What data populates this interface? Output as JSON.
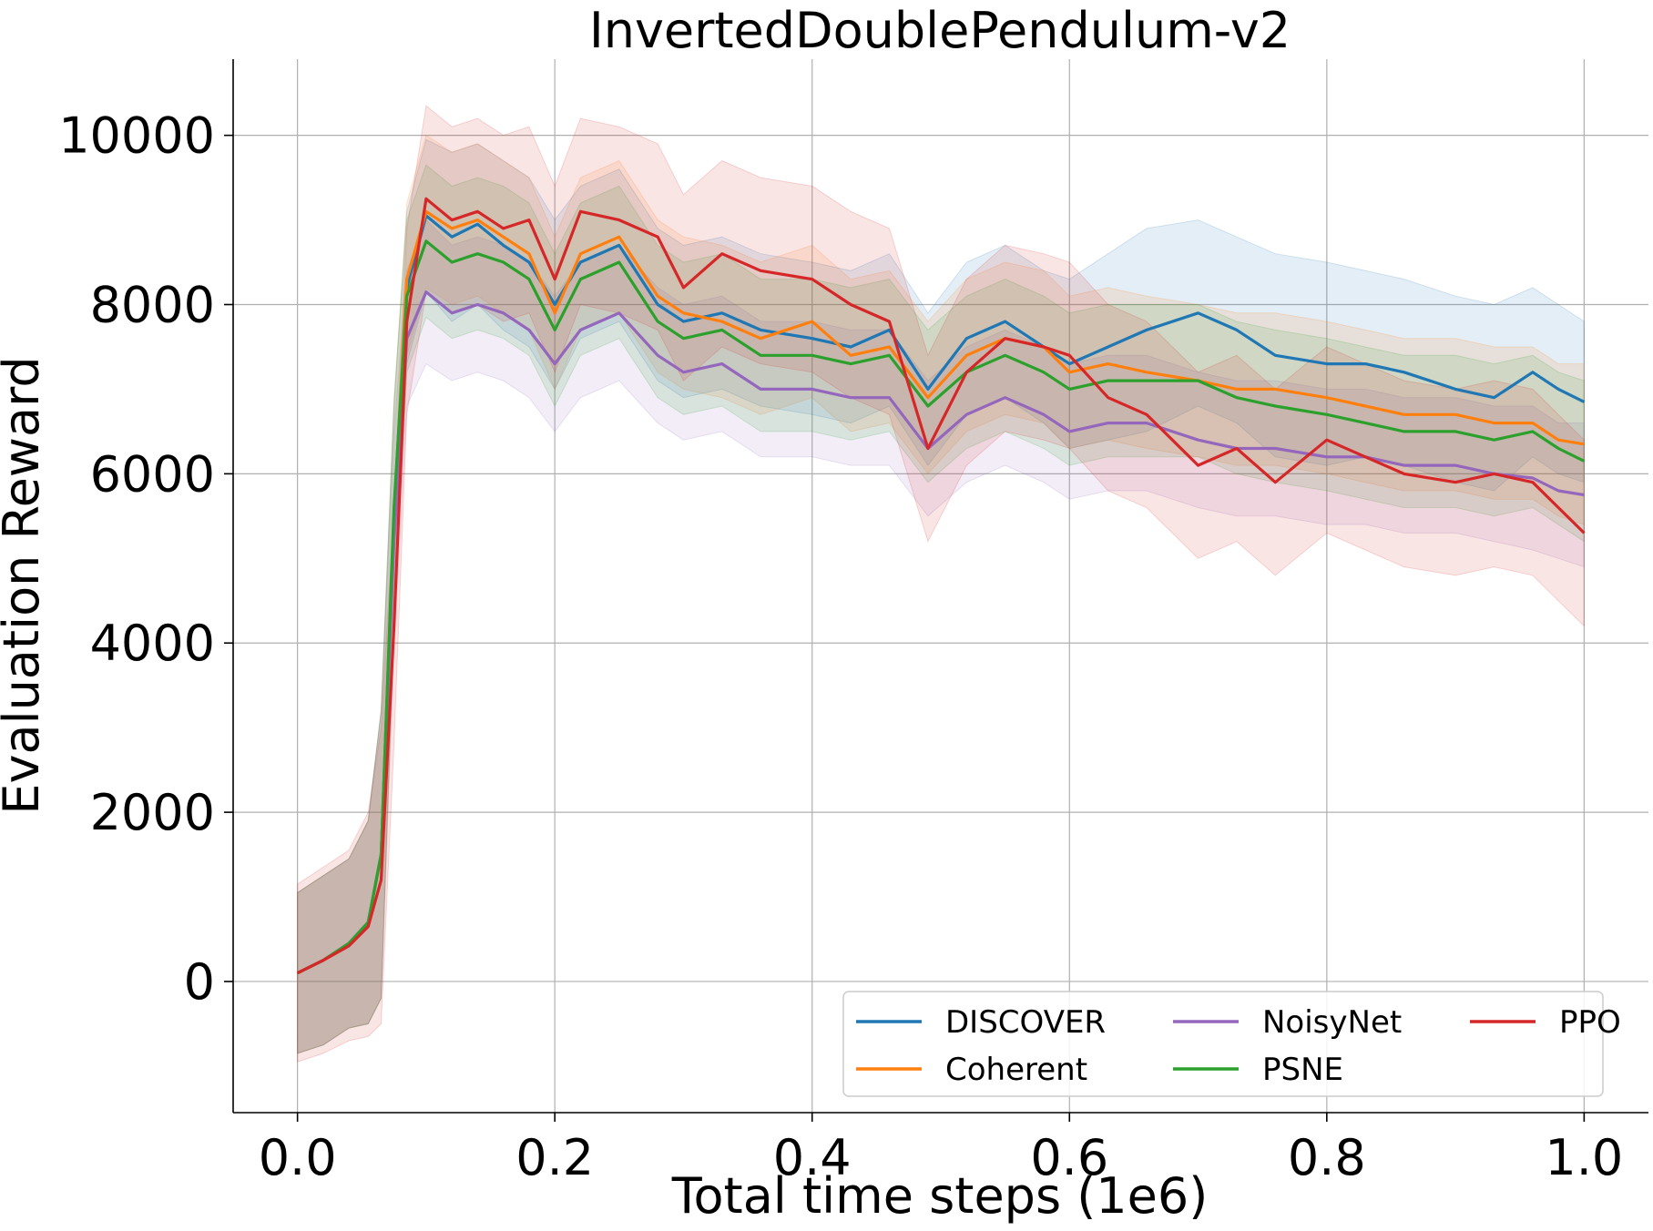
{
  "chart_data": {
    "type": "line",
    "title": "InvertedDoublePendulum-v2",
    "xlabel": "Total time steps (1e6)",
    "ylabel": "Evaluation Reward",
    "xlim": [
      -0.05,
      1.05
    ],
    "ylim": [
      -1550,
      10900
    ],
    "xticks": [
      0.0,
      0.2,
      0.4,
      0.6,
      0.8,
      1.0
    ],
    "xtick_labels": [
      "0.0",
      "0.2",
      "0.4",
      "0.6",
      "0.8",
      "1.0"
    ],
    "yticks": [
      0,
      2000,
      4000,
      6000,
      8000,
      10000
    ],
    "ytick_labels": [
      "0",
      "2000",
      "4000",
      "6000",
      "8000",
      "10000"
    ],
    "grid": true,
    "legend_position": "lower-right",
    "x": [
      0.0,
      0.02,
      0.04,
      0.055,
      0.065,
      0.075,
      0.085,
      0.1,
      0.12,
      0.14,
      0.16,
      0.18,
      0.2,
      0.22,
      0.25,
      0.28,
      0.3,
      0.33,
      0.36,
      0.4,
      0.43,
      0.46,
      0.49,
      0.52,
      0.55,
      0.58,
      0.6,
      0.63,
      0.66,
      0.7,
      0.73,
      0.76,
      0.8,
      0.83,
      0.86,
      0.9,
      0.93,
      0.96,
      0.98,
      1.0
    ],
    "series": [
      {
        "name": "DISCOVER",
        "color": "#1f77b4",
        "values": [
          100,
          250,
          450,
          700,
          1500,
          5500,
          8200,
          9050,
          8800,
          8950,
          8700,
          8500,
          8000,
          8500,
          8700,
          8000,
          7800,
          7900,
          7700,
          7600,
          7500,
          7700,
          7000,
          7600,
          7800,
          7500,
          7300,
          7500,
          7700,
          7900,
          7700,
          7400,
          7300,
          7300,
          7200,
          7000,
          6900,
          7200,
          7000,
          6850
        ],
        "upper": [
          1050,
          1250,
          1450,
          1900,
          3200,
          6800,
          9100,
          9950,
          9800,
          9900,
          9700,
          9500,
          9000,
          9400,
          9600,
          8900,
          8700,
          8800,
          8600,
          8500,
          8400,
          8600,
          7900,
          8500,
          8700,
          8400,
          8300,
          8600,
          8900,
          9000,
          8800,
          8600,
          8500,
          8400,
          8300,
          8100,
          8000,
          8200,
          8000,
          7800
        ],
        "lower": [
          -850,
          -750,
          -550,
          -500,
          -200,
          4200,
          7300,
          8150,
          7800,
          8000,
          7700,
          7500,
          7000,
          7600,
          7800,
          7100,
          6900,
          7000,
          6800,
          6700,
          6600,
          6800,
          6100,
          6700,
          6900,
          6600,
          6300,
          6400,
          6500,
          6800,
          6600,
          6200,
          6100,
          6200,
          6100,
          5900,
          5800,
          6200,
          6000,
          5900
        ]
      },
      {
        "name": "Coherent",
        "color": "#ff7f0e",
        "values": [
          100,
          250,
          450,
          700,
          1500,
          5500,
          8300,
          9100,
          8900,
          9000,
          8800,
          8600,
          7900,
          8600,
          8800,
          8100,
          7900,
          7800,
          7600,
          7800,
          7400,
          7500,
          6900,
          7400,
          7600,
          7500,
          7200,
          7300,
          7200,
          7100,
          7000,
          7000,
          6900,
          6800,
          6700,
          6700,
          6600,
          6600,
          6400,
          6350
        ],
        "upper": [
          1050,
          1250,
          1450,
          1900,
          3200,
          6800,
          9200,
          10000,
          9800,
          9900,
          9700,
          9500,
          8800,
          9500,
          9700,
          9000,
          8800,
          8700,
          8500,
          8700,
          8300,
          8400,
          7800,
          8300,
          8500,
          8400,
          8100,
          8200,
          8100,
          8000,
          7900,
          7900,
          7800,
          7700,
          7600,
          7600,
          7500,
          7500,
          7300,
          7300
        ],
        "lower": [
          -850,
          -750,
          -550,
          -500,
          -200,
          4200,
          7400,
          8200,
          8000,
          8100,
          7900,
          7700,
          7000,
          7700,
          7900,
          7200,
          7000,
          6900,
          6700,
          6900,
          6500,
          6600,
          6000,
          6500,
          6700,
          6600,
          6300,
          6400,
          6300,
          6200,
          6100,
          6100,
          6000,
          5900,
          5800,
          5800,
          5700,
          5700,
          5500,
          5400
        ]
      },
      {
        "name": "NoisyNet",
        "color": "#9467bd",
        "values": [
          100,
          250,
          450,
          700,
          1500,
          5200,
          7600,
          8150,
          7900,
          8000,
          7900,
          7700,
          7300,
          7700,
          7900,
          7400,
          7200,
          7300,
          7000,
          7000,
          6900,
          6900,
          6300,
          6700,
          6900,
          6700,
          6500,
          6600,
          6600,
          6400,
          6300,
          6300,
          6200,
          6200,
          6100,
          6100,
          6000,
          5950,
          5800,
          5750
        ],
        "upper": [
          1050,
          1250,
          1450,
          1900,
          3200,
          6500,
          8400,
          9000,
          8700,
          8800,
          8700,
          8500,
          8100,
          8500,
          8700,
          8200,
          8000,
          8100,
          7800,
          7800,
          7700,
          7700,
          7100,
          7500,
          7700,
          7500,
          7300,
          7400,
          7400,
          7200,
          7100,
          7100,
          7000,
          7000,
          6900,
          6900,
          6800,
          6800,
          6600,
          6600
        ],
        "lower": [
          -850,
          -750,
          -550,
          -500,
          -200,
          3900,
          6800,
          7300,
          7100,
          7200,
          7100,
          6900,
          6500,
          6900,
          7100,
          6600,
          6400,
          6500,
          6200,
          6200,
          6100,
          6100,
          5500,
          5900,
          6100,
          5900,
          5700,
          5800,
          5800,
          5600,
          5500,
          5500,
          5400,
          5400,
          5300,
          5300,
          5200,
          5100,
          5000,
          4900
        ]
      },
      {
        "name": "PSNE",
        "color": "#2ca02c",
        "values": [
          100,
          250,
          450,
          700,
          1500,
          5600,
          8100,
          8750,
          8500,
          8600,
          8500,
          8300,
          7700,
          8300,
          8500,
          7800,
          7600,
          7700,
          7400,
          7400,
          7300,
          7400,
          6800,
          7200,
          7400,
          7200,
          7000,
          7100,
          7100,
          7100,
          6900,
          6800,
          6700,
          6600,
          6500,
          6500,
          6400,
          6500,
          6300,
          6150
        ],
        "upper": [
          1050,
          1250,
          1450,
          1900,
          3200,
          6900,
          9000,
          9650,
          9400,
          9500,
          9400,
          9200,
          8600,
          9200,
          9400,
          8700,
          8500,
          8600,
          8300,
          8300,
          8200,
          8300,
          7700,
          8100,
          8300,
          8100,
          7900,
          8000,
          8000,
          8000,
          7800,
          7700,
          7600,
          7500,
          7400,
          7400,
          7300,
          7400,
          7200,
          7100
        ],
        "lower": [
          -850,
          -750,
          -550,
          -500,
          -200,
          4300,
          7200,
          7850,
          7600,
          7700,
          7600,
          7400,
          6800,
          7400,
          7600,
          6900,
          6700,
          6800,
          6500,
          6500,
          6400,
          6500,
          5900,
          6300,
          6500,
          6300,
          6100,
          6200,
          6200,
          6200,
          6000,
          5900,
          5800,
          5700,
          5600,
          5600,
          5500,
          5600,
          5400,
          5200
        ]
      },
      {
        "name": "PPO",
        "color": "#d62728",
        "values": [
          100,
          250,
          420,
          650,
          1200,
          4200,
          7800,
          9250,
          9000,
          9100,
          8900,
          9000,
          8300,
          9100,
          9000,
          8800,
          8200,
          8600,
          8400,
          8300,
          8000,
          7800,
          6300,
          7200,
          7600,
          7500,
          7400,
          6900,
          6700,
          6100,
          6300,
          5900,
          6400,
          6200,
          6000,
          5900,
          6000,
          5900,
          5600,
          5300
        ],
        "upper": [
          1150,
          1350,
          1550,
          2000,
          3000,
          5600,
          8900,
          10350,
          10100,
          10200,
          10000,
          10100,
          9400,
          10200,
          10100,
          9900,
          9300,
          9700,
          9500,
          9400,
          9100,
          8900,
          7400,
          8300,
          8700,
          8600,
          8500,
          8000,
          7800,
          7200,
          7400,
          7000,
          7500,
          7300,
          7100,
          7000,
          7100,
          7000,
          6700,
          6400
        ],
        "lower": [
          -950,
          -850,
          -700,
          -650,
          -500,
          2800,
          6700,
          8150,
          7900,
          8000,
          7800,
          7900,
          7200,
          8000,
          7900,
          7700,
          7100,
          7500,
          7300,
          7200,
          6900,
          6700,
          5200,
          6100,
          6500,
          6400,
          6300,
          5800,
          5600,
          5000,
          5200,
          4800,
          5300,
          5100,
          4900,
          4800,
          4900,
          4800,
          4500,
          4200
        ]
      }
    ]
  }
}
